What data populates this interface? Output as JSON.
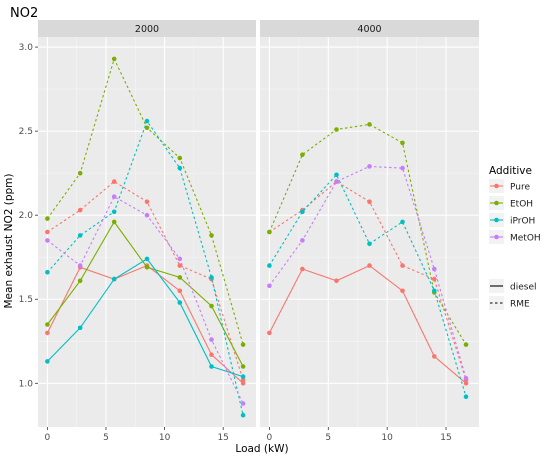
{
  "chart_data": {
    "type": "line",
    "title": "NO2",
    "xlabel": "Load (kW)",
    "ylabel": "Mean exhaust NO2 (ppm)",
    "xlim": [
      -0.8,
      17.8
    ],
    "ylim": [
      0.74,
      3.06
    ],
    "x_ticks": [
      0,
      5,
      10,
      15
    ],
    "y_ticks": [
      1.0,
      1.5,
      2.0,
      2.5,
      3.0
    ],
    "y_tick_labels": [
      "1.0",
      "1.5",
      "2.0",
      "2.5",
      "3.0"
    ],
    "grid": true,
    "legend": {
      "position": "right",
      "color_title": "Additive",
      "color_items": [
        {
          "name": "Pure",
          "color": "#F8766D"
        },
        {
          "name": "EtOH",
          "color": "#7CAE00"
        },
        {
          "name": "iPrOH",
          "color": "#00BFC4"
        },
        {
          "name": "MetOH",
          "color": "#C77CFF"
        }
      ],
      "linetype_items": [
        {
          "name": "diesel",
          "dash": "solid"
        },
        {
          "name": "RME",
          "dash": "dotted"
        }
      ]
    },
    "panels": [
      {
        "label": "2000",
        "series": [
          {
            "additive": "Pure",
            "fuel": "diesel",
            "x": [
              0,
              2.8,
              5.7,
              8.5,
              11.3,
              14,
              16.7
            ],
            "y": [
              1.3,
              1.69,
              1.62,
              1.7,
              1.55,
              1.17,
              1.0
            ]
          },
          {
            "additive": "Pure",
            "fuel": "RME",
            "x": [
              0,
              2.8,
              5.7,
              8.5,
              11.3,
              14,
              16.7
            ],
            "y": [
              1.9,
              2.03,
              2.2,
              2.08,
              1.7,
              1.62,
              1.02
            ]
          },
          {
            "additive": "EtOH",
            "fuel": "diesel",
            "x": [
              0,
              2.8,
              5.7,
              8.5,
              11.3,
              14,
              16.7
            ],
            "y": [
              1.35,
              1.61,
              1.96,
              1.69,
              1.63,
              1.46,
              1.1
            ]
          },
          {
            "additive": "EtOH",
            "fuel": "RME",
            "x": [
              0,
              2.8,
              5.7,
              8.5,
              11.3,
              14,
              16.7
            ],
            "y": [
              1.98,
              2.25,
              2.93,
              2.52,
              2.34,
              1.88,
              1.23
            ]
          },
          {
            "additive": "iPrOH",
            "fuel": "diesel",
            "x": [
              0,
              2.8,
              5.7,
              8.5,
              11.3,
              14,
              16.7
            ],
            "y": [
              1.13,
              1.33,
              1.62,
              1.74,
              1.48,
              1.1,
              1.04
            ]
          },
          {
            "additive": "iPrOH",
            "fuel": "RME",
            "x": [
              0,
              2.8,
              5.7,
              8.5,
              11.3,
              14,
              16.7
            ],
            "y": [
              1.66,
              1.88,
              2.02,
              2.56,
              2.28,
              1.63,
              0.81
            ]
          },
          {
            "additive": "MetOH",
            "fuel": "RME",
            "x": [
              0,
              2.8,
              5.7,
              8.5,
              11.3,
              14,
              16.7
            ],
            "y": [
              1.85,
              1.7,
              2.11,
              2.0,
              1.74,
              1.26,
              0.88
            ]
          }
        ]
      },
      {
        "label": "4000",
        "series": [
          {
            "additive": "Pure",
            "fuel": "diesel",
            "x": [
              0,
              2.8,
              5.7,
              8.5,
              11.3,
              14,
              16.7
            ],
            "y": [
              1.3,
              1.68,
              1.61,
              1.7,
              1.55,
              1.16,
              1.0
            ]
          },
          {
            "additive": "Pure",
            "fuel": "RME",
            "x": [
              0,
              2.8,
              5.7,
              8.5,
              11.3,
              14,
              16.7
            ],
            "y": [
              1.9,
              2.03,
              2.2,
              2.08,
              1.7,
              1.62,
              1.02
            ]
          },
          {
            "additive": "EtOH",
            "fuel": "RME",
            "x": [
              0,
              2.8,
              5.7,
              8.5,
              11.3,
              14,
              16.7
            ],
            "y": [
              1.9,
              2.36,
              2.51,
              2.54,
              2.43,
              1.54,
              1.23
            ]
          },
          {
            "additive": "iPrOH",
            "fuel": "RME",
            "x": [
              0,
              2.8,
              5.7,
              8.5,
              11.3,
              14,
              16.7
            ],
            "y": [
              1.7,
              2.02,
              2.24,
              1.83,
              1.96,
              1.55,
              0.92
            ]
          },
          {
            "additive": "MetOH",
            "fuel": "RME",
            "x": [
              0,
              2.8,
              5.7,
              8.5,
              11.3,
              14,
              16.7
            ],
            "y": [
              1.58,
              1.85,
              2.2,
              2.29,
              2.28,
              1.68,
              1.03
            ]
          }
        ]
      }
    ]
  }
}
